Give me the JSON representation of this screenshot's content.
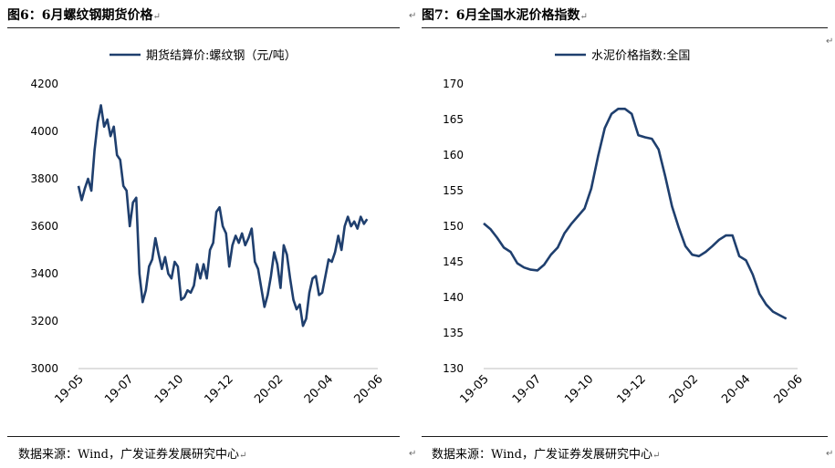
{
  "left_panel": {
    "title": "图6：6月螺纹钢期货价格",
    "source": "数据来源：Wind，广发证券发展研究中心"
  },
  "right_panel": {
    "title": "图7：6月全国水泥价格指数",
    "source": "数据来源：Wind，广发证券发展研究中心"
  },
  "para_mark": "↵",
  "colors": {
    "series": "#1f3f6e",
    "rule": "#1b1b1b"
  },
  "chart_data": [
    {
      "type": "line",
      "title": "",
      "legend": "期货结算价:螺纹钢（元/吨）",
      "legend_position": "top-center",
      "categories": [
        "19-05",
        "19-07",
        "19-10",
        "19-12",
        "20-02",
        "20-04",
        "20-06"
      ],
      "x_domain": [
        0,
        14
      ],
      "yticks": [
        3000,
        3200,
        3400,
        3600,
        3800,
        4000,
        4200
      ],
      "ylim": [
        3000,
        4200
      ],
      "grid": false,
      "series": [
        {
          "name": "期货结算价:螺纹钢（元/吨）",
          "x": [
            0,
            0.15,
            0.3,
            0.45,
            0.6,
            0.75,
            0.9,
            1.05,
            1.2,
            1.35,
            1.5,
            1.65,
            1.8,
            1.95,
            2.1,
            2.25,
            2.4,
            2.55,
            2.7,
            2.85,
            3.0,
            3.15,
            3.3,
            3.45,
            3.6,
            3.75,
            3.9,
            4.05,
            4.2,
            4.35,
            4.5,
            4.65,
            4.8,
            4.95,
            5.1,
            5.25,
            5.4,
            5.55,
            5.7,
            5.85,
            6.0,
            6.15,
            6.3,
            6.45,
            6.6,
            6.75,
            6.9,
            7.05,
            7.2,
            7.35,
            7.5,
            7.65,
            7.8,
            7.95,
            8.1,
            8.25,
            8.4,
            8.55,
            8.7,
            8.85,
            9.0,
            9.15,
            9.3,
            9.45,
            9.6,
            9.75,
            9.9,
            10.05,
            10.2,
            10.35,
            10.5,
            10.65,
            10.8,
            10.95,
            11.1,
            11.25,
            11.4,
            11.55,
            11.7,
            11.85,
            12.0,
            12.15,
            12.3,
            12.45,
            12.6,
            12.75,
            12.9,
            13.05,
            13.2,
            13.35,
            13.5
          ],
          "values": [
            3770,
            3710,
            3760,
            3800,
            3750,
            3920,
            4040,
            4110,
            4020,
            4050,
            3980,
            4020,
            3900,
            3880,
            3770,
            3750,
            3600,
            3700,
            3720,
            3400,
            3280,
            3330,
            3430,
            3460,
            3550,
            3480,
            3420,
            3470,
            3400,
            3380,
            3450,
            3430,
            3290,
            3300,
            3330,
            3320,
            3350,
            3440,
            3380,
            3440,
            3380,
            3500,
            3530,
            3660,
            3680,
            3600,
            3570,
            3430,
            3520,
            3560,
            3530,
            3570,
            3520,
            3550,
            3590,
            3450,
            3420,
            3340,
            3260,
            3310,
            3390,
            3490,
            3440,
            3340,
            3520,
            3480,
            3380,
            3290,
            3250,
            3270,
            3180,
            3210,
            3320,
            3380,
            3390,
            3310,
            3320,
            3390,
            3460,
            3450,
            3490,
            3560,
            3500,
            3600,
            3640,
            3600,
            3620,
            3590,
            3640,
            3610,
            3630
          ]
        }
      ]
    },
    {
      "type": "line",
      "title": "",
      "legend": "水泥价格指数:全国",
      "legend_position": "top-center",
      "categories": [
        "19-05",
        "19-07",
        "19-10",
        "19-12",
        "20-02",
        "20-04",
        "20-06"
      ],
      "x_domain": [
        0,
        14
      ],
      "yticks": [
        130,
        135,
        140,
        145,
        150,
        155,
        160,
        165,
        170
      ],
      "ylim": [
        130,
        170
      ],
      "grid": false,
      "series": [
        {
          "name": "水泥价格指数:全国",
          "x": [
            0,
            0.3,
            0.6,
            0.9,
            1.2,
            1.5,
            1.8,
            2.1,
            2.4,
            2.7,
            3.0,
            3.3,
            3.6,
            3.9,
            4.2,
            4.5,
            4.8,
            5.1,
            5.4,
            5.7,
            6.0,
            6.3,
            6.6,
            6.9,
            7.2,
            7.5,
            7.8,
            8.1,
            8.4,
            8.7,
            9.0,
            9.3,
            9.6,
            9.9,
            10.2,
            10.5,
            10.8,
            11.1,
            11.4,
            11.7,
            12.0,
            12.3,
            12.6,
            12.9,
            13.2,
            13.5
          ],
          "values": [
            150.4,
            149.6,
            148.4,
            147.0,
            146.4,
            144.8,
            144.2,
            143.9,
            143.8,
            144.6,
            146.0,
            147.0,
            149.0,
            150.3,
            151.4,
            152.5,
            155.3,
            159.8,
            163.8,
            165.8,
            166.5,
            166.5,
            165.8,
            162.8,
            162.5,
            162.3,
            160.8,
            157.0,
            152.8,
            149.8,
            147.2,
            146.0,
            145.8,
            146.4,
            147.2,
            148.1,
            148.7,
            148.7,
            145.8,
            145.2,
            143.2,
            140.5,
            139.0,
            138.0,
            137.5,
            137.0
          ]
        }
      ]
    }
  ]
}
